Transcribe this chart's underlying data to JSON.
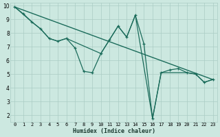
{
  "xlabel": "Humidex (Indice chaleur)",
  "bg_color": "#cce8e0",
  "grid_color": "#aaccC4",
  "line_color": "#1a6b5a",
  "xlim": [
    -0.5,
    23.5
  ],
  "ylim": [
    1.5,
    10.2
  ],
  "xticks": [
    0,
    1,
    2,
    3,
    4,
    5,
    6,
    7,
    8,
    9,
    10,
    11,
    12,
    13,
    14,
    15,
    16,
    17,
    18,
    19,
    20,
    21,
    22,
    23
  ],
  "yticks": [
    2,
    3,
    4,
    5,
    6,
    7,
    8,
    9,
    10
  ],
  "series_main_x": [
    0,
    1,
    2,
    3,
    4,
    5,
    6,
    7,
    8,
    9,
    10,
    11,
    12,
    13,
    14,
    15,
    16,
    17,
    18,
    19,
    20,
    21,
    22,
    23
  ],
  "series_main_y": [
    9.9,
    9.4,
    8.8,
    8.3,
    7.6,
    7.4,
    7.6,
    6.9,
    5.2,
    5.1,
    6.5,
    7.5,
    8.5,
    7.7,
    9.3,
    7.2,
    1.75,
    5.1,
    5.3,
    5.4,
    5.1,
    5.0,
    4.4,
    4.6
  ],
  "series_line1_x": [
    0,
    23
  ],
  "series_line1_y": [
    9.9,
    4.6
  ],
  "series_line2_x": [
    0,
    2,
    3,
    4,
    5,
    6,
    10,
    11,
    12,
    13,
    14,
    16,
    17,
    20,
    21,
    22,
    23
  ],
  "series_line2_y": [
    9.9,
    8.8,
    8.3,
    7.6,
    7.4,
    7.6,
    6.5,
    7.5,
    8.5,
    7.7,
    9.3,
    1.75,
    5.1,
    5.1,
    5.0,
    4.4,
    4.6
  ]
}
